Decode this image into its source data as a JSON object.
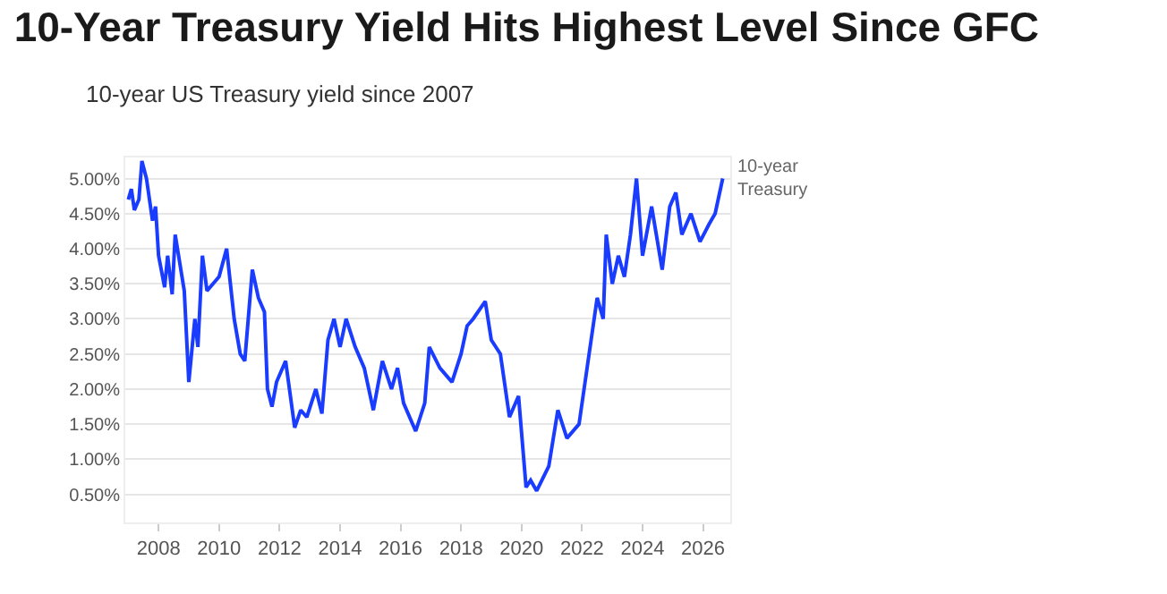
{
  "chart_data": {
    "type": "line",
    "title": "10-Year Treasury Yield Hits Highest Level Since GFC",
    "subtitle": "10-year US Treasury yield since 2007",
    "x": [
      2007.0,
      2007.1,
      2007.2,
      2007.35,
      2007.45,
      2007.6,
      2007.8,
      2007.9,
      2008.0,
      2008.2,
      2008.3,
      2008.45,
      2008.55,
      2008.7,
      2008.85,
      2009.0,
      2009.2,
      2009.3,
      2009.45,
      2009.6,
      2009.8,
      2010.0,
      2010.25,
      2010.5,
      2010.7,
      2010.85,
      2011.1,
      2011.3,
      2011.5,
      2011.6,
      2011.75,
      2011.9,
      2012.2,
      2012.5,
      2012.7,
      2012.9,
      2013.2,
      2013.4,
      2013.6,
      2013.8,
      2014.0,
      2014.2,
      2014.5,
      2014.8,
      2015.1,
      2015.4,
      2015.7,
      2015.9,
      2016.1,
      2016.5,
      2016.8,
      2016.95,
      2017.3,
      2017.7,
      2018.0,
      2018.2,
      2018.4,
      2018.8,
      2019.0,
      2019.3,
      2019.6,
      2019.9,
      2020.15,
      2020.3,
      2020.5,
      2020.9,
      2021.2,
      2021.5,
      2021.9,
      2022.2,
      2022.5,
      2022.7,
      2022.8,
      2023.0,
      2023.2,
      2023.4,
      2023.6,
      2023.8,
      2024.0,
      2024.3,
      2024.65,
      2024.9,
      2025.1,
      2025.3,
      2025.6,
      2025.9,
      2026.2,
      2026.4,
      2026.65
    ],
    "series": [
      {
        "color": "#1a3cff",
        "values": [
          4.7,
          4.85,
          4.55,
          4.7,
          5.25,
          5.0,
          4.4,
          4.6,
          3.9,
          3.45,
          3.9,
          3.35,
          4.2,
          3.8,
          3.4,
          2.1,
          3.0,
          2.6,
          3.9,
          3.4,
          3.5,
          3.6,
          4.0,
          3.0,
          2.5,
          2.4,
          3.7,
          3.3,
          3.1,
          2.0,
          1.75,
          2.1,
          2.4,
          1.45,
          1.7,
          1.6,
          2.0,
          1.65,
          2.7,
          3.0,
          2.6,
          3.0,
          2.6,
          2.3,
          1.7,
          2.4,
          2.0,
          2.3,
          1.8,
          1.4,
          1.8,
          2.6,
          2.3,
          2.1,
          2.5,
          2.9,
          3.0,
          3.25,
          2.7,
          2.5,
          1.6,
          1.9,
          0.6,
          0.7,
          0.55,
          0.9,
          1.7,
          1.3,
          1.5,
          2.4,
          3.3,
          3.0,
          4.2,
          3.5,
          3.9,
          3.6,
          4.2,
          5.0,
          3.9,
          4.6,
          3.7,
          4.6,
          4.8,
          4.2,
          4.5,
          4.1,
          4.35,
          4.5,
          5.0
        ]
      }
    ],
    "annotations": [
      {
        "text": "10-year\nTreasury",
        "x": 2026.65,
        "y": 5.0
      }
    ],
    "xlim": [
      2006.9,
      2026.9
    ],
    "xticks": [
      2008,
      2010,
      2012,
      2014,
      2016,
      2018,
      2020,
      2022,
      2024,
      2026
    ],
    "ylim": [
      0.1,
      5.3
    ],
    "yticks": [
      {
        "value": 0.5,
        "label": "0.50%"
      },
      {
        "value": 1.0,
        "label": "1.00%"
      },
      {
        "value": 1.5,
        "label": "1.50%"
      },
      {
        "value": 2.0,
        "label": "2.00%"
      },
      {
        "value": 2.5,
        "label": "2.50%"
      },
      {
        "value": 3.0,
        "label": "3.00%"
      },
      {
        "value": 3.5,
        "label": "3.50%"
      },
      {
        "value": 4.0,
        "label": "4.00%"
      },
      {
        "value": 4.5,
        "label": "4.50%"
      },
      {
        "value": 5.0,
        "label": "5.00%"
      }
    ],
    "grid": "y"
  }
}
